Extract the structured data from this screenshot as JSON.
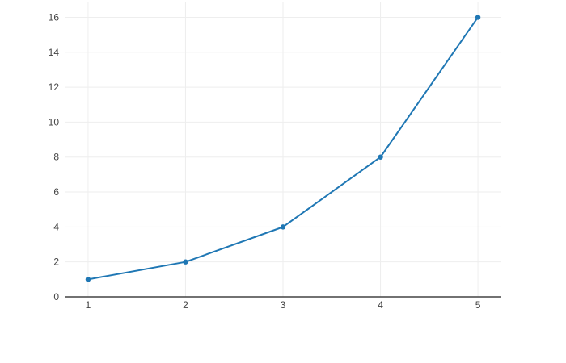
{
  "chart_data": {
    "type": "line",
    "x": [
      1,
      2,
      3,
      4,
      5
    ],
    "y": [
      1,
      2,
      4,
      8,
      16
    ],
    "title": "",
    "xlabel": "",
    "ylabel": "",
    "xticks": [
      1,
      2,
      3,
      4,
      5
    ],
    "yticks": [
      0,
      2,
      4,
      6,
      8,
      10,
      12,
      14,
      16
    ],
    "xlim": [
      0.76,
      5.24
    ],
    "ylim": [
      0,
      16.9
    ],
    "grid": true,
    "legend": false,
    "mode": "lines+markers",
    "line_color": "#1f77b4",
    "marker_color": "#1f77b4",
    "grid_color": "#eeeeee",
    "zeroline_color": "#444444",
    "tick_color": "#444444",
    "background_color": "#ffffff"
  }
}
